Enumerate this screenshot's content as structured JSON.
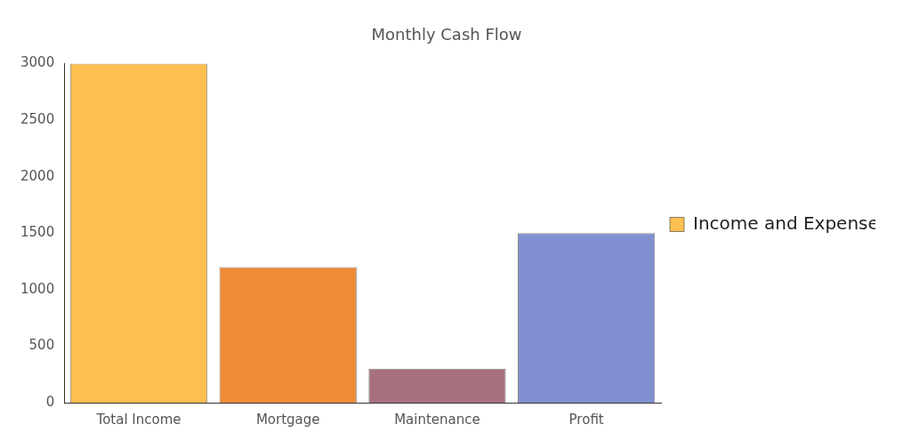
{
  "chart_data": {
    "type": "bar",
    "title": "Monthly Cash Flow",
    "categories": [
      "Total Income",
      "Mortgage",
      "Maintenance",
      "Profit"
    ],
    "series": [
      {
        "name": "Income and Expenses",
        "values": [
          3000,
          1200,
          300,
          1500
        ],
        "colors": [
          "#fdbf4f",
          "#ef8a37",
          "#a8707e",
          "#8090d0"
        ]
      }
    ],
    "ylim": [
      0,
      3000
    ],
    "yticks": [
      0,
      500,
      1000,
      1500,
      2000,
      2500,
      3000
    ],
    "grid": false,
    "legend": "right"
  }
}
